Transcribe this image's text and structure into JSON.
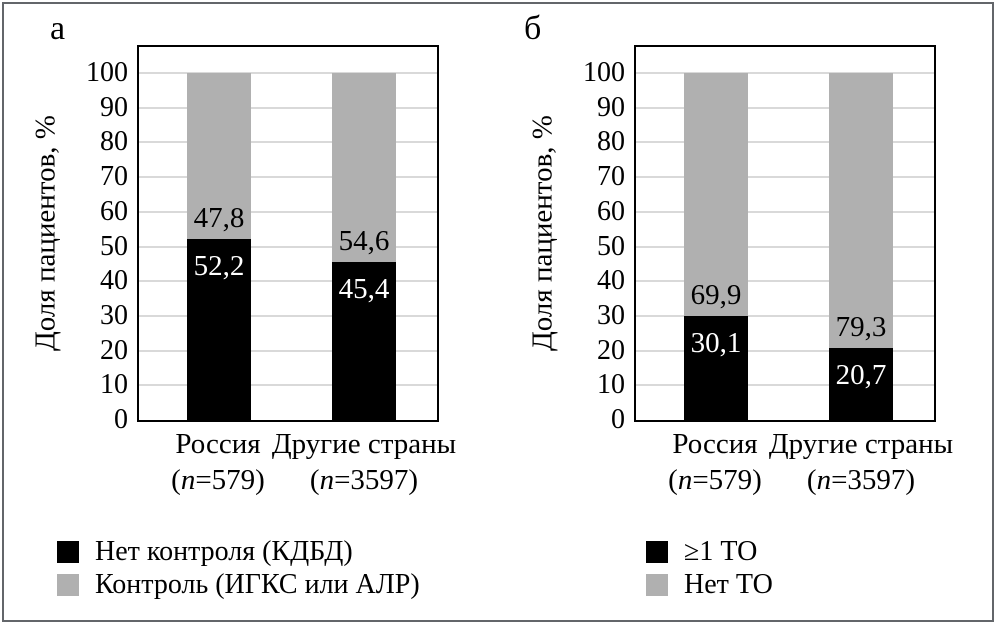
{
  "colors": {
    "bar_black": "#000000",
    "bar_gray": "#b0b0b0",
    "grid": "#d9d9d9",
    "plot_border": "#000000",
    "outer_frame": "#63666a",
    "value_label_on_black": "#ffffff",
    "value_label_on_gray": "#000000"
  },
  "chart_data": [
    {
      "type": "bar",
      "stacked": true,
      "panel_label": "а",
      "title": "",
      "xlabel": "",
      "ylabel": "Доля пациентов, %",
      "ylim": [
        0,
        100
      ],
      "ytick_step": 10,
      "yticks": [
        0,
        10,
        20,
        30,
        40,
        50,
        60,
        70,
        80,
        90,
        100
      ],
      "grid": true,
      "legend_position": "bottom-left",
      "categories": [
        "Россия",
        "Другие страны"
      ],
      "categories_sub": [
        "(n=579)",
        "(n=3597)"
      ],
      "series": [
        {
          "name": "Нет контроля (КДБД)",
          "color": "#000000",
          "values": [
            52.2,
            45.4
          ],
          "value_labels": [
            "52,2",
            "45,4"
          ],
          "value_label_color": "#ffffff"
        },
        {
          "name": "Контроль (ИГКС или АЛР)",
          "color": "#b0b0b0",
          "values": [
            47.8,
            54.6
          ],
          "value_labels": [
            "47,8",
            "54,6"
          ],
          "value_label_color": "#000000"
        }
      ]
    },
    {
      "type": "bar",
      "stacked": true,
      "panel_label": "б",
      "title": "",
      "xlabel": "",
      "ylabel": "Доля пациентов, %",
      "ylim": [
        0,
        100
      ],
      "ytick_step": 10,
      "yticks": [
        0,
        10,
        20,
        30,
        40,
        50,
        60,
        70,
        80,
        90,
        100
      ],
      "grid": true,
      "legend_position": "bottom-left",
      "categories": [
        "Россия",
        "Другие страны"
      ],
      "categories_sub": [
        "(n=579)",
        "(n=3597)"
      ],
      "series": [
        {
          "name": "≥1 ТО",
          "color": "#000000",
          "values": [
            30.1,
            20.7
          ],
          "value_labels": [
            "30,1",
            "20,7"
          ],
          "value_label_color": "#ffffff"
        },
        {
          "name": "Нет ТО",
          "color": "#b0b0b0",
          "values": [
            69.9,
            79.3
          ],
          "value_labels": [
            "69,9",
            "79,3"
          ],
          "value_label_color": "#000000"
        }
      ]
    }
  ]
}
